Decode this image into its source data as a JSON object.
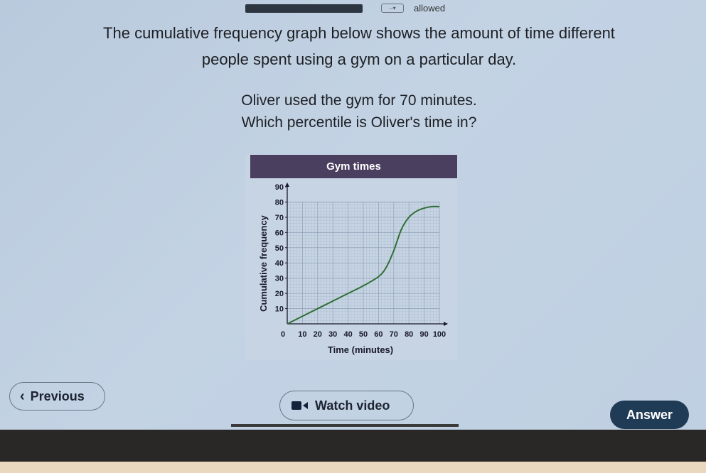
{
  "header": {
    "dropdown_glyph": "--▾",
    "allowed_label": "allowed"
  },
  "question": {
    "line1": "The cumulative frequency graph below shows the amount of time different",
    "line2": "people spent using a gym on a particular day.",
    "line3": "Oliver used the gym for 70 minutes.",
    "line4": "Which percentile is Oliver's time in?"
  },
  "chart_data": {
    "type": "line",
    "title": "Gym times",
    "xlabel": "Time (minutes)",
    "ylabel": "Cumulative frequency",
    "xlim": [
      0,
      100
    ],
    "ylim": [
      0,
      90
    ],
    "x_ticks": [
      0,
      10,
      20,
      30,
      40,
      50,
      60,
      70,
      80,
      90,
      100
    ],
    "y_ticks": [
      10,
      20,
      30,
      40,
      50,
      60,
      70,
      80,
      90
    ],
    "grid": true,
    "series": [
      {
        "x": [
          0,
          10,
          20,
          30,
          40,
          50,
          60,
          65,
          70,
          75,
          80,
          85,
          90,
          95,
          100
        ],
        "y": [
          0,
          5,
          10,
          15,
          20,
          25,
          31,
          37,
          48,
          62,
          70,
          74,
          76,
          77,
          77
        ],
        "color": "#2f6e35"
      }
    ]
  },
  "buttons": {
    "previous": "Previous",
    "previous_chevron": "‹",
    "watch_video": "Watch video",
    "answer": "Answer"
  },
  "colors": {
    "chart_header": "#4a3f5e",
    "curve": "#2f6e35",
    "answer_button": "#1f3b55"
  }
}
